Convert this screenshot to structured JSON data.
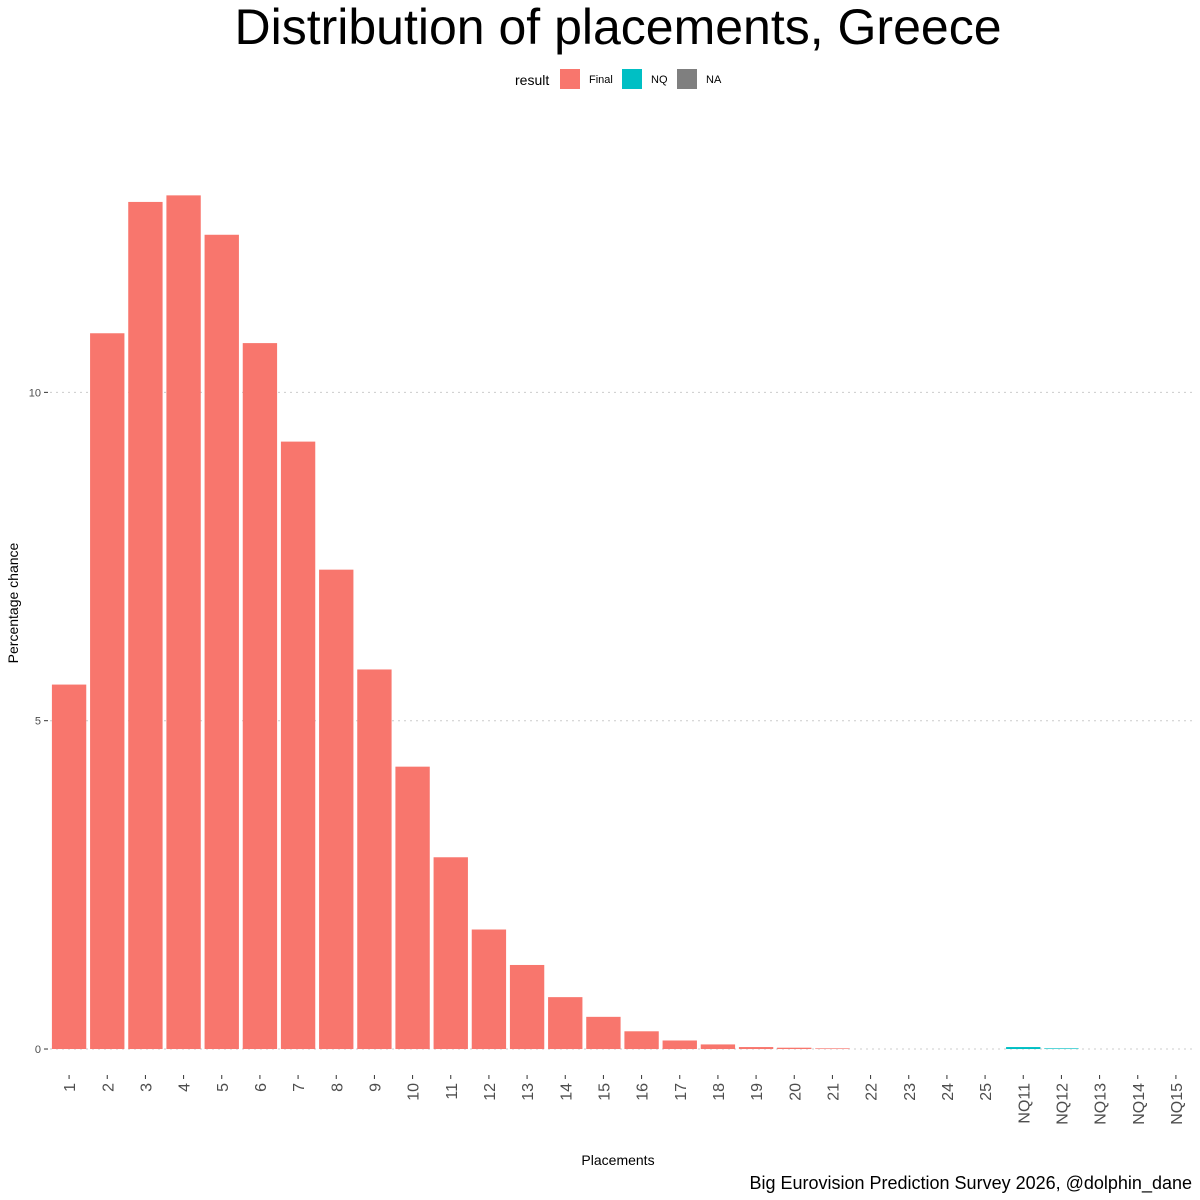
{
  "chart_data": {
    "type": "bar",
    "title": "Distribution of placements, Greece",
    "xlabel": "Placements",
    "ylabel": "Percentage chance",
    "caption": "Big Eurovision Prediction Survey 2026, @dolphin_dane",
    "legend": {
      "title": "result",
      "position": "top",
      "entries": [
        {
          "label": "Final",
          "color": "#F8766D"
        },
        {
          "label": "NQ",
          "color": "#00BFC4"
        },
        {
          "label": "NA",
          "color": "#7F7F7F"
        }
      ]
    },
    "categories": [
      "1",
      "2",
      "3",
      "4",
      "5",
      "6",
      "7",
      "8",
      "9",
      "10",
      "11",
      "12",
      "13",
      "14",
      "15",
      "16",
      "17",
      "18",
      "19",
      "20",
      "21",
      "22",
      "23",
      "24",
      "25",
      "NQ11",
      "NQ12",
      "NQ13",
      "NQ14",
      "NQ15"
    ],
    "values": [
      5.55,
      10.9,
      12.9,
      13.0,
      12.4,
      10.75,
      9.25,
      7.3,
      5.78,
      4.3,
      2.92,
      1.82,
      1.28,
      0.79,
      0.49,
      0.27,
      0.13,
      0.07,
      0.03,
      0.02,
      0.01,
      0,
      0,
      0,
      0,
      0.03,
      0.01,
      0,
      0,
      0
    ],
    "result": [
      "Final",
      "Final",
      "Final",
      "Final",
      "Final",
      "Final",
      "Final",
      "Final",
      "Final",
      "Final",
      "Final",
      "Final",
      "Final",
      "Final",
      "Final",
      "Final",
      "Final",
      "Final",
      "Final",
      "Final",
      "Final",
      "Final",
      "Final",
      "Final",
      "Final",
      "NQ",
      "NQ",
      "NQ",
      "NQ",
      "NQ"
    ],
    "yticks": [
      0,
      5,
      10
    ],
    "ylim": [
      -0.35,
      14.3
    ],
    "grid": "major-y-dotted"
  }
}
